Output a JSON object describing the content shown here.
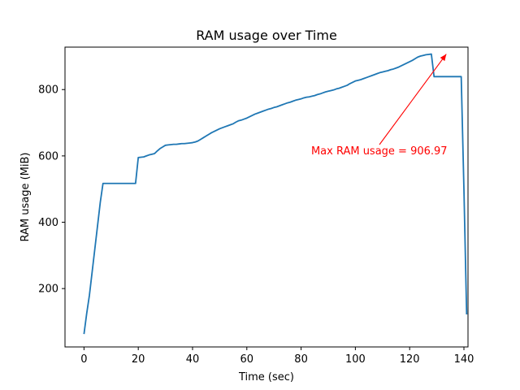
{
  "chart_data": {
    "type": "line",
    "title": "RAM usage over Time",
    "xlabel": "Time (sec)",
    "ylabel": "RAM usage (MiB)",
    "xlim": [
      -7,
      141.5
    ],
    "ylim": [
      24,
      928
    ],
    "x_ticks": [
      0,
      20,
      40,
      60,
      80,
      100,
      120,
      140
    ],
    "y_ticks": [
      200,
      400,
      600,
      800
    ],
    "grid": false,
    "line_color": "#1f77b4",
    "series": [
      {
        "x": [
          0,
          1,
          2,
          3,
          4,
          5,
          6,
          7,
          8,
          9,
          10,
          11,
          12,
          13,
          14,
          15,
          16,
          17,
          18,
          19,
          20,
          21,
          22,
          23,
          24,
          25,
          26,
          27,
          28,
          29,
          30,
          31,
          32,
          33,
          34,
          35,
          36,
          37,
          38,
          39,
          40,
          41,
          42,
          43,
          44,
          45,
          46,
          47,
          48,
          49,
          50,
          51,
          52,
          53,
          54,
          55,
          56,
          57,
          58,
          59,
          60,
          61,
          62,
          63,
          64,
          65,
          66,
          67,
          68,
          69,
          70,
          71,
          72,
          73,
          74,
          75,
          76,
          77,
          78,
          79,
          80,
          81,
          82,
          83,
          84,
          85,
          86,
          87,
          88,
          89,
          90,
          91,
          92,
          93,
          94,
          95,
          96,
          97,
          98,
          99,
          100,
          101,
          102,
          103,
          104,
          105,
          106,
          107,
          108,
          109,
          110,
          111,
          112,
          113,
          114,
          115,
          116,
          117,
          118,
          119,
          120,
          121,
          122,
          123,
          124,
          125,
          126,
          127,
          128,
          129,
          130,
          131,
          132,
          133,
          134,
          135,
          136,
          137,
          138,
          139,
          140,
          141
        ],
        "y": [
          63,
          125,
          180,
          250,
          320,
          390,
          460,
          517,
          517,
          517,
          517,
          517,
          517,
          517,
          517,
          517,
          517,
          517,
          517,
          517,
          595,
          596,
          597,
          600,
          603,
          605,
          607,
          615,
          622,
          627,
          632,
          633,
          634,
          635,
          635,
          636,
          637,
          637,
          638,
          639,
          640,
          642,
          645,
          650,
          655,
          660,
          665,
          670,
          674,
          678,
          682,
          685,
          688,
          691,
          694,
          697,
          702,
          706,
          708,
          711,
          714,
          718,
          722,
          726,
          729,
          732,
          735,
          738,
          741,
          743,
          746,
          748,
          751,
          754,
          757,
          760,
          762,
          765,
          768,
          770,
          772,
          775,
          777,
          778,
          780,
          782,
          785,
          787,
          790,
          793,
          795,
          797,
          799,
          802,
          804,
          807,
          810,
          813,
          818,
          822,
          826,
          828,
          830,
          833,
          836,
          839,
          842,
          845,
          848,
          851,
          853,
          855,
          857,
          860,
          862,
          865,
          868,
          872,
          876,
          880,
          884,
          888,
          893,
          898,
          901,
          903,
          905,
          906,
          906.97,
          839,
          839,
          839,
          839,
          839,
          839,
          839,
          839,
          839,
          839,
          839,
          500,
          122
        ]
      }
    ],
    "annotations": [
      {
        "text": "Max RAM usage = 906.97",
        "xy": [
          133.5,
          906.97
        ],
        "xytext": [
          83.7,
          605
        ],
        "color": "#ff0000",
        "arrow": true
      }
    ]
  }
}
